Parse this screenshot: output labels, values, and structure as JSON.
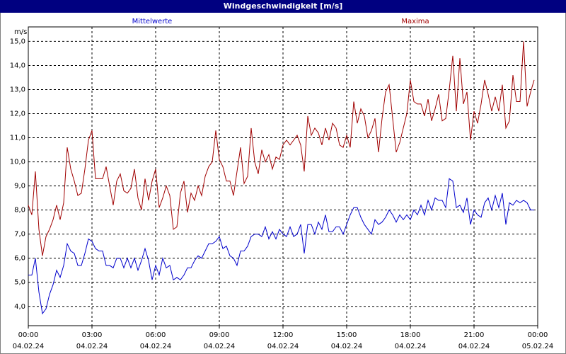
{
  "chart_data": {
    "type": "line",
    "title": "Windgeschwindigkeit [m/s]",
    "y_unit": "m/s",
    "xlim": [
      0,
      1440
    ],
    "ylim": [
      3.2,
      15.6
    ],
    "xticks": [
      {
        "value": 0,
        "label": "00:00",
        "date": "04.02.24"
      },
      {
        "value": 180,
        "label": "03:00",
        "date": "04.02.24"
      },
      {
        "value": 360,
        "label": "06:00",
        "date": "04.02.24"
      },
      {
        "value": 540,
        "label": "09:00",
        "date": "04.02.24"
      },
      {
        "value": 720,
        "label": "12:00",
        "date": "04.02.24"
      },
      {
        "value": 900,
        "label": "15:00",
        "date": "04.02.24"
      },
      {
        "value": 1080,
        "label": "18:00",
        "date": "04.02.24"
      },
      {
        "value": 1260,
        "label": "21:00",
        "date": "04.02.24"
      },
      {
        "value": 1440,
        "label": "00:00",
        "date": "05.02.24"
      }
    ],
    "yticks": [
      {
        "value": 4,
        "label": "4,0"
      },
      {
        "value": 5,
        "label": "5,0"
      },
      {
        "value": 6,
        "label": "6,0"
      },
      {
        "value": 7,
        "label": "7,0"
      },
      {
        "value": 8,
        "label": "8,0"
      },
      {
        "value": 9,
        "label": "9,0"
      },
      {
        "value": 10,
        "label": "10,0"
      },
      {
        "value": 11,
        "label": "11,0"
      },
      {
        "value": 12,
        "label": "12,0"
      },
      {
        "value": 13,
        "label": "13,0"
      },
      {
        "value": 14,
        "label": "14,0"
      },
      {
        "value": 15,
        "label": "15,0"
      }
    ],
    "grid": true,
    "x": [
      0,
      10,
      20,
      30,
      40,
      50,
      60,
      70,
      80,
      90,
      100,
      110,
      120,
      130,
      140,
      150,
      160,
      170,
      180,
      190,
      200,
      210,
      220,
      230,
      240,
      250,
      260,
      270,
      280,
      290,
      300,
      310,
      320,
      330,
      340,
      350,
      360,
      370,
      380,
      390,
      400,
      410,
      420,
      430,
      440,
      450,
      460,
      470,
      480,
      490,
      500,
      510,
      520,
      530,
      540,
      550,
      560,
      570,
      580,
      590,
      600,
      610,
      620,
      630,
      640,
      650,
      660,
      670,
      680,
      690,
      700,
      710,
      720,
      730,
      740,
      750,
      760,
      770,
      780,
      790,
      800,
      810,
      820,
      830,
      840,
      850,
      860,
      870,
      880,
      890,
      900,
      910,
      920,
      930,
      940,
      950,
      960,
      970,
      980,
      990,
      1000,
      1010,
      1020,
      1030,
      1040,
      1050,
      1060,
      1070,
      1080,
      1090,
      1100,
      1110,
      1120,
      1130,
      1140,
      1150,
      1160,
      1170,
      1180,
      1190,
      1200,
      1210,
      1220,
      1230,
      1240,
      1250,
      1260,
      1270,
      1280,
      1290,
      1300,
      1310,
      1320,
      1330,
      1340,
      1350,
      1360,
      1370,
      1380,
      1390,
      1400,
      1410,
      1420,
      1430
    ],
    "series": [
      {
        "name": "Mittelwerte",
        "color": "#0000cc",
        "values": [
          5.3,
          5.3,
          6.0,
          4.6,
          3.7,
          3.9,
          4.5,
          4.9,
          5.5,
          5.2,
          5.7,
          6.6,
          6.3,
          6.2,
          5.7,
          5.7,
          6.2,
          6.8,
          6.7,
          6.4,
          6.3,
          6.3,
          5.7,
          5.7,
          5.6,
          6.0,
          6.0,
          5.6,
          6.0,
          5.6,
          6.0,
          5.5,
          5.9,
          6.4,
          5.9,
          5.1,
          5.7,
          5.3,
          6.0,
          5.6,
          5.7,
          5.1,
          5.2,
          5.1,
          5.3,
          5.6,
          5.6,
          5.9,
          6.1,
          6.0,
          6.3,
          6.6,
          6.6,
          6.7,
          6.9,
          6.4,
          6.5,
          6.1,
          6.0,
          5.7,
          6.3,
          6.3,
          6.5,
          6.9,
          7.0,
          7.0,
          6.9,
          7.3,
          6.8,
          7.1,
          6.8,
          7.2,
          7.0,
          6.9,
          7.3,
          6.9,
          7.0,
          7.4,
          6.2,
          7.4,
          7.4,
          7.0,
          7.5,
          7.2,
          7.8,
          7.1,
          7.1,
          7.3,
          7.3,
          7.0,
          7.4,
          7.8,
          8.1,
          8.1,
          7.7,
          7.4,
          7.2,
          7.0,
          7.6,
          7.4,
          7.5,
          7.7,
          8.0,
          7.8,
          7.5,
          7.8,
          7.6,
          7.8,
          7.6,
          8.0,
          7.8,
          8.2,
          7.8,
          8.4,
          8.0,
          8.5,
          8.4,
          8.4,
          8.1,
          9.3,
          9.2,
          8.1,
          8.2,
          7.9,
          8.5,
          7.4,
          8.0,
          7.8,
          7.7,
          8.3,
          8.5,
          8.0,
          8.6,
          8.1,
          8.7,
          7.4,
          8.3,
          8.2,
          8.4,
          8.3,
          8.4,
          8.3,
          8.0,
          8.0
        ]
      },
      {
        "name": "Maxima",
        "color": "#a00000",
        "values": [
          8.2,
          7.8,
          9.6,
          7.2,
          6.1,
          6.9,
          7.2,
          7.6,
          8.2,
          7.6,
          8.3,
          10.6,
          9.7,
          9.2,
          8.6,
          8.7,
          9.7,
          10.9,
          11.3,
          9.3,
          9.3,
          9.3,
          9.8,
          9.0,
          8.2,
          9.2,
          9.5,
          8.8,
          8.7,
          8.9,
          9.7,
          8.5,
          8.0,
          9.3,
          8.4,
          9.2,
          9.7,
          8.1,
          8.5,
          9.0,
          8.6,
          7.2,
          7.3,
          8.7,
          9.2,
          7.9,
          8.7,
          8.4,
          9.0,
          8.6,
          9.4,
          9.8,
          10.0,
          11.3,
          10.1,
          9.8,
          9.2,
          9.2,
          8.6,
          9.6,
          10.6,
          9.1,
          9.4,
          11.4,
          10.0,
          9.5,
          10.5,
          10.0,
          10.3,
          9.7,
          10.2,
          10.1,
          10.7,
          10.9,
          10.7,
          10.9,
          11.1,
          10.7,
          9.6,
          11.9,
          11.1,
          11.4,
          11.2,
          10.7,
          11.4,
          10.9,
          11.6,
          11.4,
          10.7,
          10.6,
          11.1,
          10.6,
          12.5,
          11.6,
          12.2,
          11.9,
          11.0,
          11.3,
          11.8,
          10.4,
          11.8,
          12.9,
          13.2,
          11.8,
          10.4,
          10.8,
          11.4,
          12.0,
          13.4,
          12.5,
          12.4,
          12.4,
          11.9,
          12.6,
          11.7,
          12.2,
          12.8,
          11.7,
          11.8,
          13.0,
          14.4,
          12.1,
          14.3,
          12.4,
          12.9,
          10.9,
          12.1,
          11.6,
          12.4,
          13.4,
          12.8,
          12.1,
          12.7,
          12.1,
          13.2,
          11.4,
          11.7,
          13.6,
          12.5,
          12.5,
          15.0,
          12.3,
          12.9,
          13.4
        ]
      }
    ]
  }
}
